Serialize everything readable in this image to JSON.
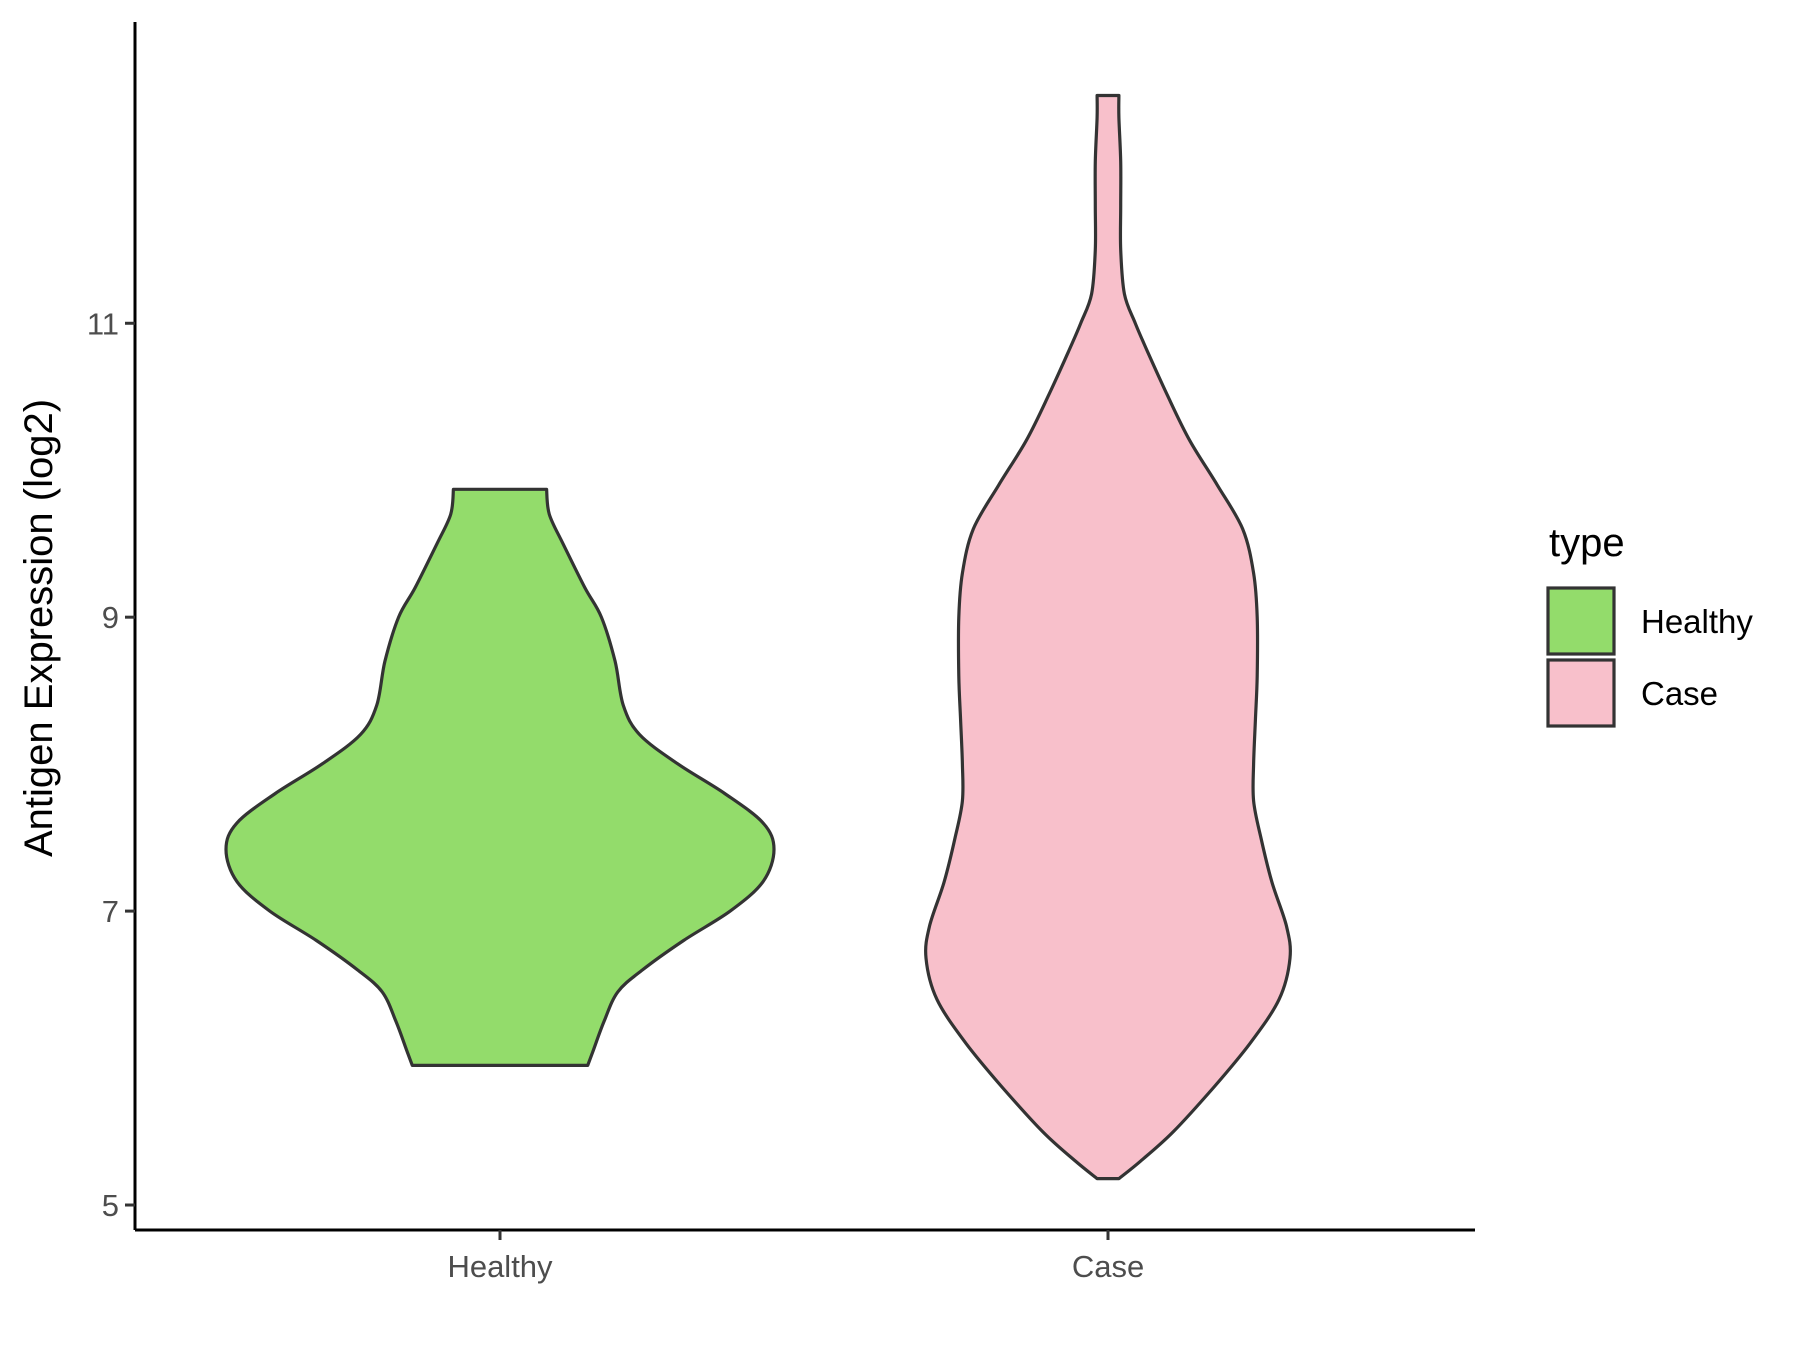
{
  "chart_data": {
    "type": "violin",
    "title": "",
    "xlabel": "",
    "ylabel": "Antigen Expression (log2)",
    "categories": [
      "Healthy",
      "Case"
    ],
    "ylim": [
      4.83,
      13.05
    ],
    "yticks": [
      5,
      7,
      9,
      11
    ],
    "grid": false,
    "legend": {
      "title": "type",
      "position": "right",
      "entries": [
        {
          "label": "Healthy",
          "color": "#93dc6b"
        },
        {
          "label": "Case",
          "color": "#f8c0cb"
        }
      ]
    },
    "series": [
      {
        "name": "Healthy",
        "color": "#93dc6b",
        "min": 5.95,
        "max": 9.87,
        "profile": [
          [
            5.95,
            0.32
          ],
          [
            6.05,
            0.34
          ],
          [
            6.25,
            0.38
          ],
          [
            6.45,
            0.43
          ],
          [
            6.6,
            0.52
          ],
          [
            6.8,
            0.67
          ],
          [
            7.0,
            0.84
          ],
          [
            7.2,
            0.96
          ],
          [
            7.42,
            1.0
          ],
          [
            7.6,
            0.96
          ],
          [
            7.8,
            0.82
          ],
          [
            8.0,
            0.65
          ],
          [
            8.2,
            0.51
          ],
          [
            8.4,
            0.45
          ],
          [
            8.7,
            0.42
          ],
          [
            9.0,
            0.37
          ],
          [
            9.2,
            0.31
          ],
          [
            9.5,
            0.23
          ],
          [
            9.7,
            0.18
          ],
          [
            9.87,
            0.17
          ]
        ]
      },
      {
        "name": "Case",
        "color": "#f8c0cb",
        "min": 5.18,
        "max": 12.55,
        "profile": [
          [
            5.18,
            0.06
          ],
          [
            5.3,
            0.18
          ],
          [
            5.5,
            0.36
          ],
          [
            5.8,
            0.58
          ],
          [
            6.1,
            0.78
          ],
          [
            6.4,
            0.94
          ],
          [
            6.68,
            1.0
          ],
          [
            6.9,
            0.98
          ],
          [
            7.2,
            0.9
          ],
          [
            7.5,
            0.84
          ],
          [
            7.75,
            0.8
          ],
          [
            8.0,
            0.8
          ],
          [
            8.3,
            0.81
          ],
          [
            8.6,
            0.82
          ],
          [
            9.0,
            0.82
          ],
          [
            9.3,
            0.8
          ],
          [
            9.6,
            0.74
          ],
          [
            9.9,
            0.6
          ],
          [
            10.2,
            0.45
          ],
          [
            10.5,
            0.33
          ],
          [
            10.8,
            0.22
          ],
          [
            11.0,
            0.15
          ],
          [
            11.2,
            0.09
          ],
          [
            11.5,
            0.07
          ],
          [
            11.8,
            0.07
          ],
          [
            12.1,
            0.07
          ],
          [
            12.4,
            0.06
          ],
          [
            12.55,
            0.06
          ]
        ]
      }
    ]
  }
}
